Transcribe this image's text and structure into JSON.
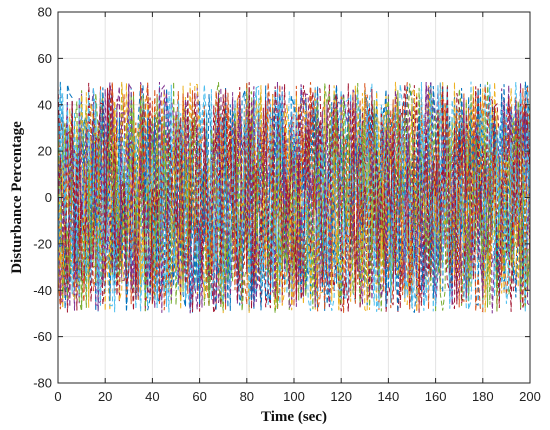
{
  "chart_data": {
    "type": "line",
    "title": "",
    "xlabel": "Time (sec)",
    "ylabel": "Disturbance Percentage",
    "xlim": [
      0,
      200
    ],
    "ylim": [
      -80,
      80
    ],
    "x_ticks": [
      0,
      20,
      40,
      60,
      80,
      100,
      120,
      140,
      160,
      180,
      200
    ],
    "y_ticks": [
      -80,
      -60,
      -40,
      -20,
      0,
      20,
      40,
      60,
      80
    ],
    "grid": true,
    "line_style": "dashed",
    "colors": [
      "#0072BD",
      "#D95319",
      "#EDB120",
      "#7E2F8E",
      "#77AC30",
      "#4DBEEE",
      "#A2142F"
    ],
    "series_count": 21,
    "sample_step": 1,
    "value_range": [
      -50,
      50
    ],
    "distribution": "uniform random"
  }
}
